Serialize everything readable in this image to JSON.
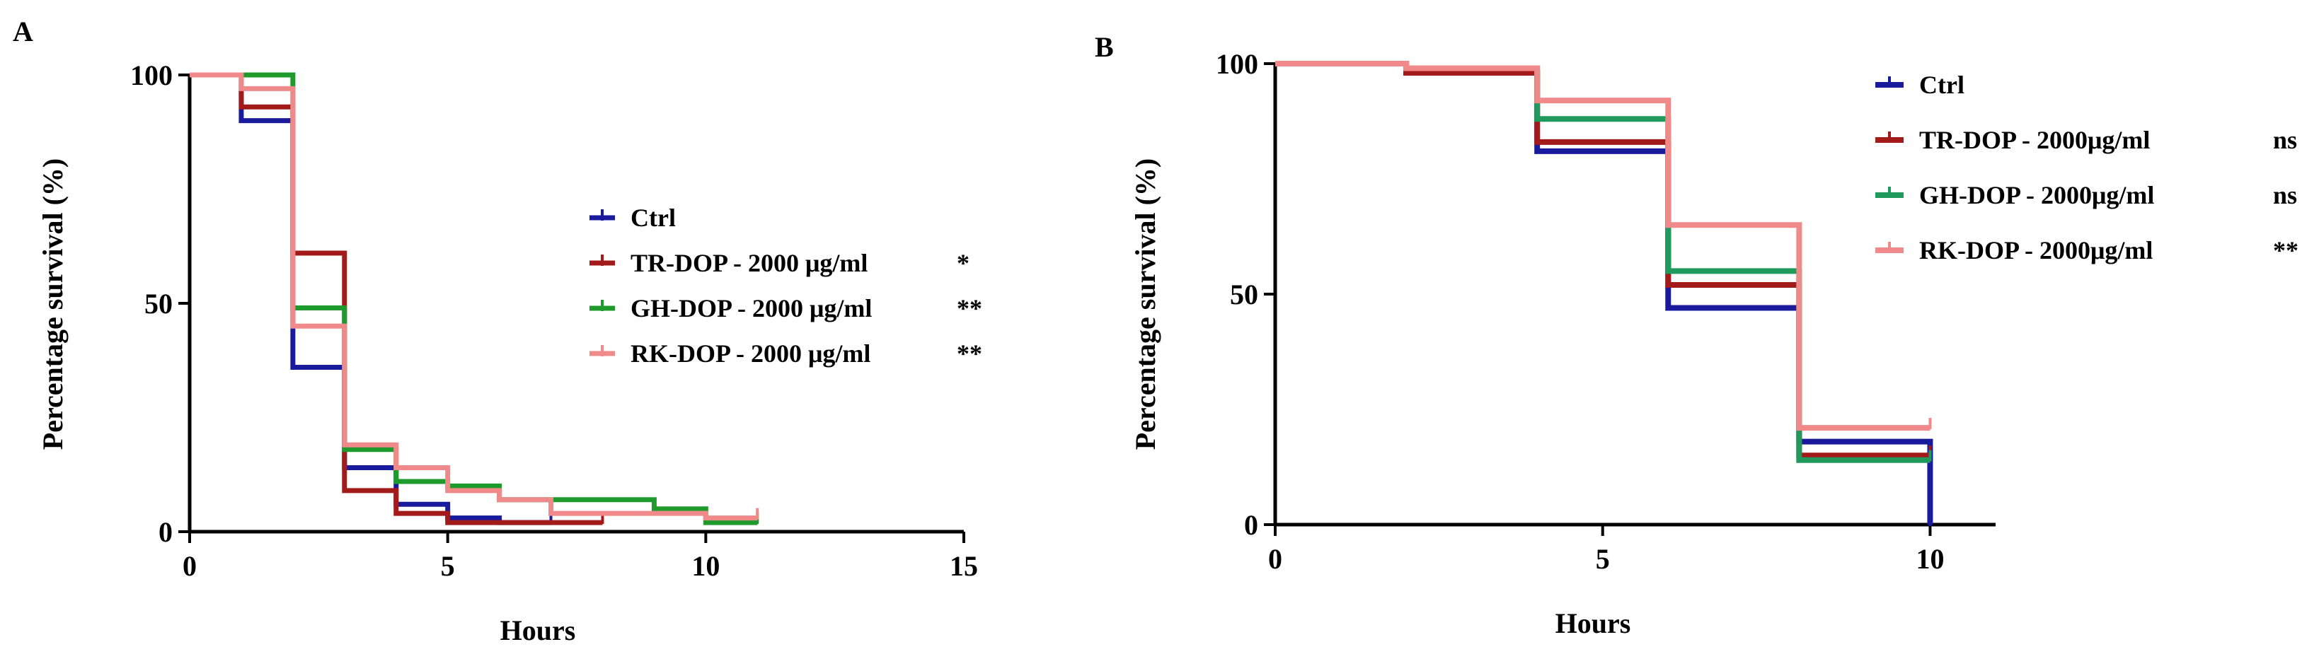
{
  "chart_data": [
    {
      "panel": "A",
      "type": "line",
      "step": true,
      "xlabel": "Hours",
      "ylabel": "Percentage survival (%)",
      "xlim": [
        0,
        15
      ],
      "ylim": [
        0,
        100
      ],
      "xticks": [
        "0",
        "5",
        "10",
        "15"
      ],
      "yticks": [
        "0",
        "50",
        "100"
      ],
      "legend_position": "center-right",
      "series": [
        {
          "name": "Ctrl",
          "significance": "",
          "color": "#1a1a9c",
          "x": [
            0,
            1,
            2,
            3,
            4,
            5,
            6,
            7
          ],
          "y": [
            100,
            90,
            36,
            14,
            6,
            3,
            2,
            2
          ]
        },
        {
          "name": "TR-DOP - 2000 μg/ml",
          "significance": "*",
          "color": "#a31a1a",
          "x": [
            0,
            1,
            2,
            3,
            4,
            5,
            6,
            8
          ],
          "y": [
            100,
            93,
            61,
            9,
            4,
            2,
            2,
            2
          ]
        },
        {
          "name": "GH-DOP - 2000 μg/ml",
          "significance": "**",
          "color": "#1f9a2c",
          "x": [
            0,
            1,
            2,
            3,
            4,
            5,
            6,
            9,
            10,
            11
          ],
          "y": [
            100,
            100,
            49,
            18,
            11,
            10,
            7,
            5,
            2,
            2
          ]
        },
        {
          "name": "RK-DOP - 2000 μg/ml",
          "significance": "**",
          "color": "#f08a8a",
          "x": [
            0,
            1,
            2,
            3,
            4,
            5,
            6,
            7,
            10,
            11
          ],
          "y": [
            100,
            97,
            45,
            19,
            14,
            9,
            7,
            4,
            3,
            3
          ]
        }
      ]
    },
    {
      "panel": "B",
      "type": "line",
      "step": true,
      "xlabel": "Hours",
      "ylabel": "Percentage survival (%)",
      "xlim": [
        0,
        11
      ],
      "ylim": [
        0,
        100
      ],
      "xticks": [
        "0",
        "5",
        "10"
      ],
      "yticks": [
        "0",
        "50",
        "100"
      ],
      "legend_position": "top-right",
      "series": [
        {
          "name": "Ctrl",
          "significance": "",
          "color": "#1a1a9c",
          "x": [
            0,
            2,
            4,
            6,
            8,
            10
          ],
          "y": [
            100,
            98,
            81,
            47,
            18,
            0
          ]
        },
        {
          "name": "TR-DOP -  2000μg/ml",
          "significance": "ns",
          "color": "#a31a1a",
          "x": [
            0,
            2,
            4,
            6,
            8,
            10
          ],
          "y": [
            100,
            98,
            83,
            52,
            15,
            15
          ]
        },
        {
          "name": "GH-DOP - 2000μg/ml",
          "significance": "ns",
          "color": "#1f9a5c",
          "x": [
            0,
            2,
            4,
            6,
            8,
            10
          ],
          "y": [
            100,
            99,
            88,
            55,
            14,
            14
          ]
        },
        {
          "name": "RK-DOP - 2000μg/ml",
          "significance": "**",
          "color": "#f08a8a",
          "x": [
            0,
            2,
            4,
            6,
            8,
            10
          ],
          "y": [
            100,
            99,
            92,
            65,
            21,
            21
          ]
        }
      ]
    }
  ]
}
